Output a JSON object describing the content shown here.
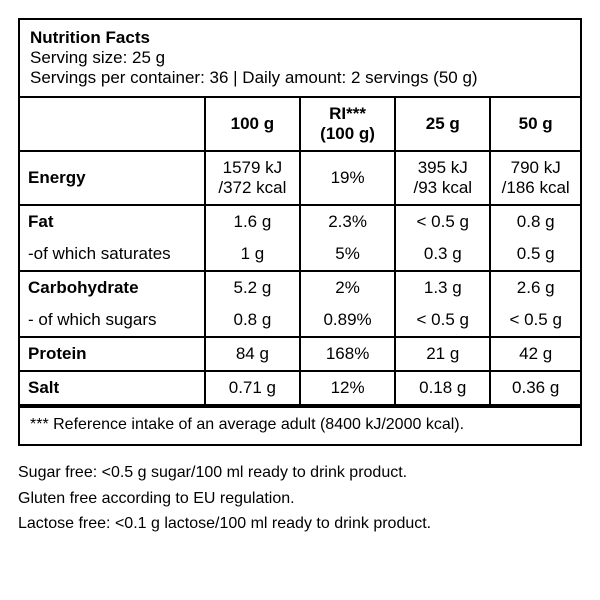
{
  "header": {
    "title": "Nutrition Facts",
    "serving_size": "Serving size: 25 g",
    "servings_per": "Servings per container: 36 | Daily amount: 2 servings (50 g)"
  },
  "columns": {
    "c1": "100 g",
    "c2_a": "RI***",
    "c2_b": "(100 g)",
    "c3": "25 g",
    "c4": "50 g"
  },
  "rows": {
    "energy": {
      "label": "Energy",
      "a1": "1579 kJ",
      "a2": "/372 kcal",
      "b": "19%",
      "c1": "395 kJ",
      "c2": "/93 kcal",
      "d1": "790 kJ",
      "d2": "/186 kcal"
    },
    "fat": {
      "label": "Fat",
      "a": "1.6 g",
      "b": "2.3%",
      "c": "< 0.5 g",
      "d": "0.8 g"
    },
    "fat_s": {
      "label": "-of which saturates",
      "a": "1 g",
      "b": "5%",
      "c": "0.3 g",
      "d": "0.5 g"
    },
    "carb": {
      "label": "Carbohydrate",
      "a": "5.2 g",
      "b": "2%",
      "c": "1.3 g",
      "d": "2.6 g"
    },
    "carb_s": {
      "label": "- of which sugars",
      "a": "0.8 g",
      "b": "0.89%",
      "c": "< 0.5 g",
      "d": "< 0.5 g"
    },
    "protein": {
      "label": "Protein",
      "a": "84 g",
      "b": "168%",
      "c": "21 g",
      "d": "42 g"
    },
    "salt": {
      "label": "Salt",
      "a": "0.71 g",
      "b": "12%",
      "c": "0.18 g",
      "d": "0.36 g"
    }
  },
  "footnote": "*** Reference intake of an average adult (8400 kJ/2000 kcal).",
  "under": {
    "l1": "Sugar free: <0.5 g sugar/100 ml ready to drink product.",
    "l2": "Gluten free according to EU regulation.",
    "l3": "Lactose free: <0.1 g lactose/100 ml ready to drink product."
  }
}
